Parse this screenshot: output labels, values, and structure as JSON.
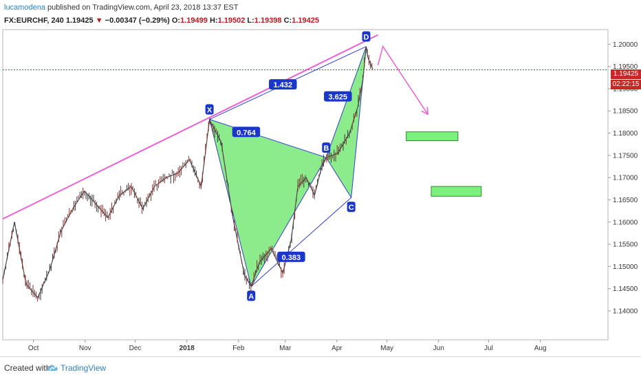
{
  "header": {
    "author": "lucamodena",
    "published_text": " published on TradingView.com, April 23, 2018 13:37 EST",
    "symbol": "FX:EURCHF, 240",
    "last": "1.19425",
    "change_arrow": "▼",
    "change": "−0.00347 (−0.29%)",
    "o_label": "O:",
    "o_value": "1.19499",
    "h_label": "H:",
    "h_value": "1.19502",
    "l_label": "L:",
    "l_value": "1.19398",
    "c_label": "C:",
    "c_value": "1.19425"
  },
  "price_tag": {
    "price": "1.19425",
    "countdown": "02:22:15"
  },
  "footer": {
    "created_with": "Created with",
    "brand": "TradingView"
  },
  "chart_data": {
    "type": "line",
    "ylim": [
      1.1335,
      1.2033
    ],
    "y_ticks": [
      "1.20000",
      "1.19500",
      "1.19000",
      "1.18500",
      "1.18000",
      "1.17500",
      "1.17000",
      "1.16500",
      "1.16000",
      "1.15500",
      "1.15000",
      "1.14500",
      "1.14000"
    ],
    "y_tick_values": [
      1.2,
      1.195,
      1.19,
      1.185,
      1.18,
      1.175,
      1.17,
      1.165,
      1.16,
      1.155,
      1.15,
      1.145,
      1.14
    ],
    "x_ticks": [
      "Oct",
      "Nov",
      "Dec",
      "2018",
      "Feb",
      "Mar",
      "Apr",
      "May",
      "Jun",
      "Jul",
      "Aug"
    ],
    "x_tick_dates": [
      "2017-10-01",
      "2017-11-01",
      "2017-12-01",
      "2018-01-01",
      "2018-02-01",
      "2018-03-01",
      "2018-04-01",
      "2018-05-01",
      "2018-06-01",
      "2018-07-01",
      "2018-08-01"
    ],
    "x_range": [
      "2017-09-13",
      "2018-09-11"
    ],
    "series": [
      {
        "x": [
          "2017-09-13",
          "2017-09-20",
          "2017-09-27",
          "2017-10-04",
          "2017-10-11",
          "2017-10-18",
          "2017-10-25",
          "2017-11-01",
          "2017-11-08",
          "2017-11-15",
          "2017-11-22",
          "2017-11-29",
          "2017-12-06",
          "2017-12-13",
          "2017-12-20",
          "2017-12-27",
          "2018-01-03",
          "2018-01-10",
          "2018-01-15",
          "2018-01-22",
          "2018-01-29",
          "2018-02-05",
          "2018-02-09",
          "2018-02-14",
          "2018-02-21",
          "2018-02-28",
          "2018-03-05",
          "2018-03-09",
          "2018-03-14",
          "2018-03-19",
          "2018-03-23",
          "2018-03-26",
          "2018-04-02",
          "2018-04-09",
          "2018-04-14",
          "2018-04-17",
          "2018-04-19",
          "2018-04-20",
          "2018-04-23"
        ],
        "values": [
          1.147,
          1.16,
          1.146,
          1.143,
          1.149,
          1.158,
          1.163,
          1.167,
          1.164,
          1.161,
          1.166,
          1.168,
          1.163,
          1.168,
          1.17,
          1.171,
          1.174,
          1.168,
          1.183,
          1.178,
          1.161,
          1.148,
          1.1455,
          1.151,
          1.154,
          1.1485,
          1.156,
          1.168,
          1.17,
          1.166,
          1.172,
          1.1745,
          1.1755,
          1.18,
          1.186,
          1.192,
          1.1995,
          1.197,
          1.1943
        ]
      }
    ],
    "current_price": 1.19425,
    "pattern": {
      "points": [
        {
          "label": "X",
          "date": "2018-01-15",
          "price": 1.1831
        },
        {
          "label": "A",
          "date": "2018-02-09",
          "price": 1.1455
        },
        {
          "label": "B",
          "date": "2018-03-26",
          "price": 1.1745
        },
        {
          "label": "C",
          "date": "2018-04-10",
          "price": 1.1655
        },
        {
          "label": "D",
          "date": "2018-04-19",
          "price": 1.1995
        }
      ],
      "ratios": [
        {
          "text": "1.432",
          "date": "2018-02-28",
          "price": 1.1909
        },
        {
          "text": "0.764",
          "date": "2018-02-06",
          "price": 1.1802
        },
        {
          "text": "3.625",
          "date": "2018-04-02",
          "price": 1.1882
        },
        {
          "text": "0.383",
          "date": "2018-03-05",
          "price": 1.1521
        }
      ]
    },
    "trendline": {
      "from": {
        "date": "2017-09-13",
        "price": 1.1607
      },
      "to": {
        "date": "2018-04-26",
        "price": 1.2021
      }
    },
    "projection_arrow": [
      {
        "date": "2018-04-26",
        "price": 1.1953
      },
      {
        "date": "2018-04-29",
        "price": 1.1995
      },
      {
        "date": "2018-05-26",
        "price": 1.1842
      }
    ],
    "target_zones": [
      {
        "from": "2018-05-13",
        "to": "2018-06-13",
        "top": 1.1803,
        "bottom": 1.1783
      },
      {
        "from": "2018-05-28",
        "to": "2018-06-27",
        "top": 1.168,
        "bottom": 1.1658
      }
    ]
  }
}
